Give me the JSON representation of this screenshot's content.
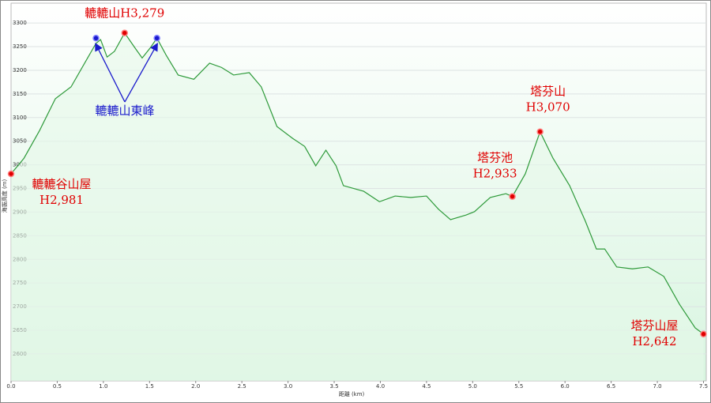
{
  "chart_data": {
    "type": "area",
    "x_label": "距離 (km)",
    "y_label": "海拔高度 (m)",
    "xlim": [
      0,
      7.53
    ],
    "ylim": [
      2543,
      3342
    ],
    "xticks": [
      {
        "value": 0,
        "label": "0.0"
      },
      0.5,
      {
        "value": 1,
        "label": "1.0"
      },
      1.5,
      {
        "value": 2,
        "label": "2.0"
      },
      2.5,
      {
        "value": 3,
        "label": "3.0"
      },
      3.5,
      {
        "value": 4,
        "label": "4.0"
      },
      4.5,
      {
        "value": 5,
        "label": "5.0"
      },
      5.5,
      {
        "value": 6,
        "label": "6.0"
      },
      6.5,
      {
        "value": 7,
        "label": "7.0"
      },
      7.5
    ],
    "yticks": [
      2600,
      2650,
      2700,
      2750,
      2800,
      2850,
      2900,
      2950,
      3000,
      3050,
      3100,
      3150,
      3200,
      3250,
      3300
    ],
    "grid": true,
    "color": "#2e9a3a",
    "x": [
      0,
      0.14,
      0.31,
      0.48,
      0.65,
      0.82,
      0.92,
      0.97,
      1.04,
      1.12,
      1.23,
      1.34,
      1.42,
      1.51,
      1.58,
      1.68,
      1.81,
      1.98,
      2.15,
      2.28,
      2.41,
      2.58,
      2.71,
      2.88,
      3.05,
      3.18,
      3.3,
      3.41,
      3.52,
      3.6,
      3.82,
      3.99,
      4.16,
      4.33,
      4.5,
      4.63,
      4.76,
      4.93,
      5.02,
      5.19,
      5.36,
      5.43,
      5.57,
      5.73,
      5.87,
      6.05,
      6.22,
      6.34,
      6.43,
      6.56,
      6.73,
      6.9,
      7.07,
      7.24,
      7.41,
      7.5
    ],
    "values": [
      2981,
      3014,
      3073,
      3140,
      3165,
      3223,
      3257,
      3265,
      3228,
      3240,
      3279,
      3248,
      3226,
      3248,
      3268,
      3232,
      3190,
      3181,
      3215,
      3206,
      3190,
      3195,
      3165,
      3081,
      3056,
      3039,
      2998,
      3031,
      2998,
      2956,
      2944,
      2922,
      2934,
      2931,
      2934,
      2906,
      2884,
      2894,
      2901,
      2931,
      2939,
      2933,
      2981,
      3070,
      3014,
      2956,
      2881,
      2822,
      2822,
      2784,
      2780,
      2784,
      2764,
      2705,
      2655,
      2642
    ],
    "annotations": [
      {
        "lines": [
          "轆轆谷山屋",
          "H2,981"
        ],
        "x": 0,
        "y": 2981,
        "color": "#e00000"
      },
      {
        "lines": [
          "轆轆山H3,279"
        ],
        "x": 1.23,
        "y": 3279,
        "color": "#e00000"
      },
      {
        "lines": [
          "塔芬池",
          "H2,933"
        ],
        "x": 5.43,
        "y": 2933,
        "color": "#e00000"
      },
      {
        "lines": [
          "塔芬山",
          "H3,070"
        ],
        "x": 5.73,
        "y": 3070,
        "color": "#e00000"
      },
      {
        "lines": [
          "塔芬山屋",
          "H2,642"
        ],
        "x": 7.5,
        "y": 2642,
        "color": "#e00000"
      }
    ],
    "peak_label": {
      "text": "轆轆山東峰",
      "color": "#1a1acc",
      "points": [
        {
          "x": 0.92,
          "y": 3268
        },
        {
          "x": 1.58,
          "y": 3268
        }
      ]
    }
  }
}
